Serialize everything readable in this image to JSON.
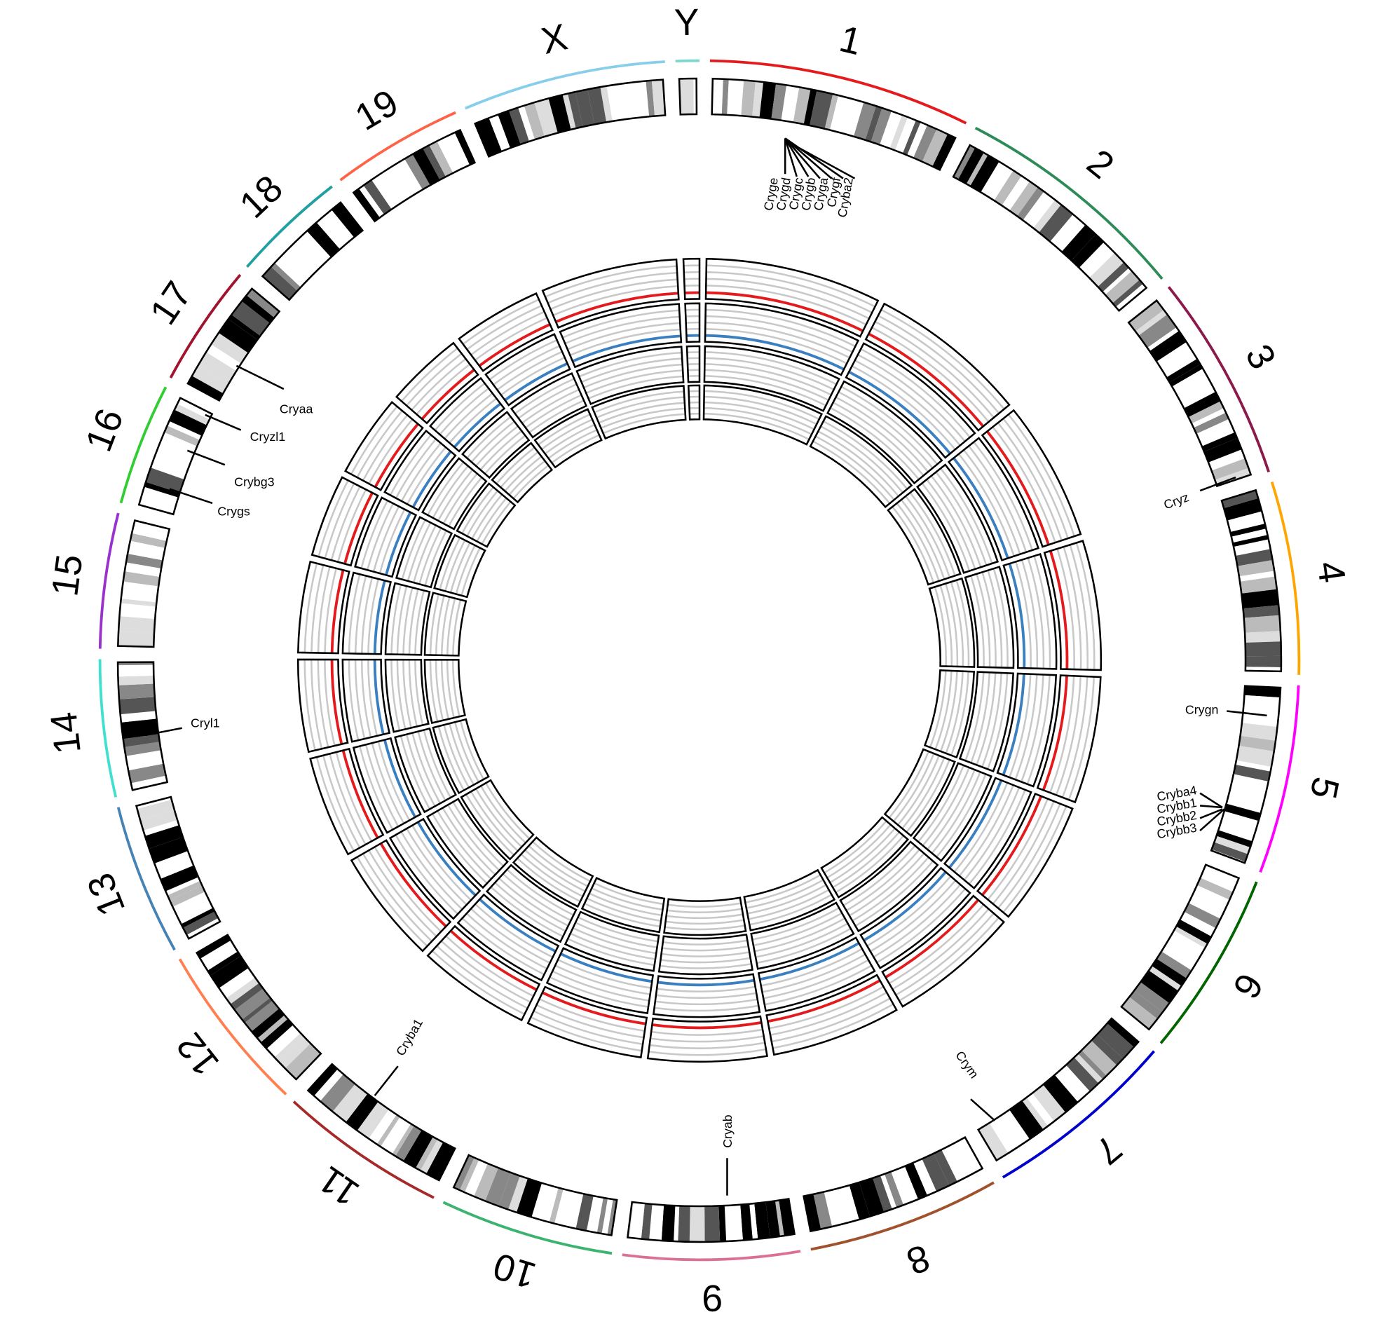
{
  "chromosomes": [
    {
      "label": "1",
      "color": "#e41a1c"
    },
    {
      "label": "2",
      "color": "#2e8b57"
    },
    {
      "label": "3",
      "color": "#8b1a4a"
    },
    {
      "label": "4",
      "color": "#ffa500"
    },
    {
      "label": "5",
      "color": "#ff00ff"
    },
    {
      "label": "6",
      "color": "#006400"
    },
    {
      "label": "7",
      "color": "#0000cd"
    },
    {
      "label": "8",
      "color": "#a0522d"
    },
    {
      "label": "9",
      "color": "#db7093"
    },
    {
      "label": "10",
      "color": "#3cb371"
    },
    {
      "label": "11",
      "color": "#a52a2a"
    },
    {
      "label": "12",
      "color": "#ff7f50"
    },
    {
      "label": "13",
      "color": "#4682b4"
    },
    {
      "label": "14",
      "color": "#40e0d0"
    },
    {
      "label": "15",
      "color": "#9932cc"
    },
    {
      "label": "16",
      "color": "#32cd32"
    },
    {
      "label": "17",
      "color": "#a0142d"
    },
    {
      "label": "18",
      "color": "#20a0a0"
    },
    {
      "label": "19",
      "color": "#ff6347"
    },
    {
      "label": "X",
      "color": "#87ceeb"
    },
    {
      "label": "Y",
      "color": "#7fd8d0"
    }
  ],
  "genes": [
    "Cryge",
    "Crygd",
    "Crygc",
    "Crygb",
    "Cryga",
    "Crygf",
    "Cryba2",
    "Cryz",
    "Crygn",
    "Cryba4",
    "Crybb1",
    "Crybb2",
    "Crybb3",
    "Crym",
    "Cryab",
    "Cryba1",
    "Cryl1",
    "Crygs",
    "Crybg3",
    "Cryzl1",
    "Cryaa"
  ]
}
